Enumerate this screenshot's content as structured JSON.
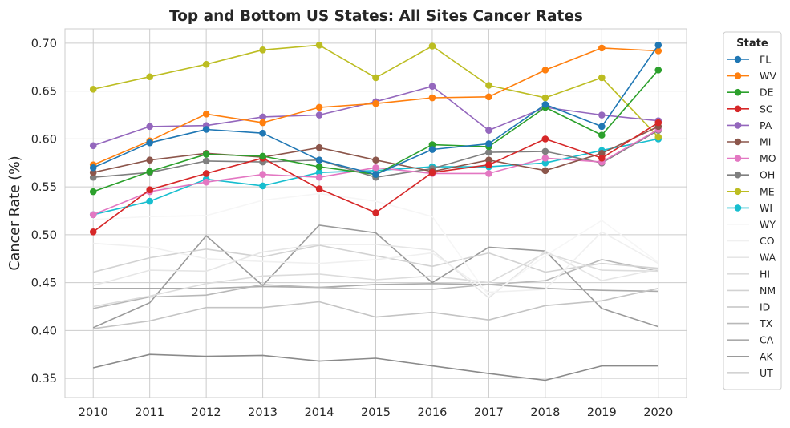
{
  "chart_data": {
    "type": "line",
    "title": "Top and Bottom US States: All Sites Cancer Rates",
    "xlabel": "",
    "ylabel": "Cancer Rate (%)",
    "x": [
      2010,
      2011,
      2012,
      2013,
      2014,
      2015,
      2016,
      2017,
      2018,
      2019,
      2020
    ],
    "ylim": [
      0.33,
      0.715
    ],
    "yticks": [
      0.35,
      0.4,
      0.45,
      0.5,
      0.55,
      0.6,
      0.65,
      0.7
    ],
    "ytick_labels": [
      "0.35",
      "0.40",
      "0.45",
      "0.50",
      "0.55",
      "0.60",
      "0.65",
      "0.70"
    ],
    "grid": true,
    "legend": {
      "title": "State",
      "position": "outside-right"
    },
    "series": [
      {
        "name": "FL",
        "color": "#1f77b4",
        "marker": true,
        "values": [
          0.57,
          0.596,
          0.61,
          0.606,
          0.578,
          0.563,
          0.589,
          0.595,
          0.636,
          0.613,
          0.698
        ]
      },
      {
        "name": "WV",
        "color": "#ff7f0e",
        "marker": true,
        "values": [
          0.573,
          0.598,
          0.626,
          0.617,
          0.633,
          0.637,
          0.643,
          0.644,
          0.672,
          0.695,
          0.692
        ]
      },
      {
        "name": "DE",
        "color": "#2ca02c",
        "marker": true,
        "values": [
          0.545,
          0.566,
          0.584,
          0.582,
          0.571,
          0.563,
          0.594,
          0.592,
          0.633,
          0.604,
          0.672
        ]
      },
      {
        "name": "SC",
        "color": "#d62728",
        "marker": true,
        "values": [
          0.503,
          0.547,
          0.564,
          0.58,
          0.548,
          0.523,
          0.565,
          0.573,
          0.6,
          0.58,
          0.617
        ]
      },
      {
        "name": "PA",
        "color": "#9467bd",
        "marker": true,
        "values": [
          0.593,
          0.613,
          0.614,
          0.623,
          0.625,
          0.639,
          0.655,
          0.609,
          0.633,
          0.625,
          0.619
        ]
      },
      {
        "name": "MI",
        "color": "#8c564b",
        "marker": true,
        "values": [
          0.565,
          0.578,
          0.585,
          0.581,
          0.591,
          0.578,
          0.566,
          0.578,
          0.567,
          0.585,
          0.613
        ]
      },
      {
        "name": "MO",
        "color": "#e377c2",
        "marker": true,
        "values": [
          0.521,
          0.545,
          0.555,
          0.563,
          0.56,
          0.57,
          0.564,
          0.564,
          0.58,
          0.576,
          0.61
        ]
      },
      {
        "name": "OH",
        "color": "#7f7f7f",
        "marker": true,
        "values": [
          0.56,
          0.565,
          0.577,
          0.576,
          0.578,
          0.56,
          0.569,
          0.586,
          0.587,
          0.575,
          0.609
        ]
      },
      {
        "name": "ME",
        "color": "#bcbd22",
        "marker": true,
        "values": [
          0.652,
          0.665,
          0.678,
          0.693,
          0.698,
          0.664,
          0.697,
          0.656,
          0.643,
          0.664,
          0.602
        ]
      },
      {
        "name": "WI",
        "color": "#17becf",
        "marker": true,
        "values": [
          0.521,
          0.535,
          0.558,
          0.551,
          0.565,
          0.567,
          0.571,
          0.571,
          0.575,
          0.588,
          0.6
        ]
      },
      {
        "name": "WY",
        "color": "#f6f6f6",
        "marker": false,
        "values": [
          0.516,
          0.519,
          0.52,
          0.536,
          0.543,
          0.535,
          0.519,
          0.436,
          0.478,
          0.515,
          0.471
        ]
      },
      {
        "name": "CO",
        "color": "#f0f0f0",
        "marker": false,
        "values": [
          0.491,
          0.487,
          0.475,
          0.472,
          0.47,
          0.474,
          0.481,
          0.44,
          0.443,
          0.503,
          0.47
        ]
      },
      {
        "name": "WA",
        "color": "#e6e6e6",
        "marker": false,
        "values": [
          0.447,
          0.463,
          0.462,
          0.482,
          0.49,
          0.49,
          0.484,
          0.434,
          0.483,
          0.452,
          0.464
        ]
      },
      {
        "name": "HI",
        "color": "#dcdcdc",
        "marker": false,
        "values": [
          0.425,
          0.436,
          0.449,
          0.457,
          0.459,
          0.453,
          0.457,
          0.45,
          0.481,
          0.463,
          0.462
        ]
      },
      {
        "name": "NM",
        "color": "#d2d2d2",
        "marker": false,
        "values": [
          0.461,
          0.476,
          0.485,
          0.477,
          0.489,
          0.478,
          0.467,
          0.481,
          0.461,
          0.47,
          0.465
        ]
      },
      {
        "name": "ID",
        "color": "#c4c4c4",
        "marker": false,
        "values": [
          0.402,
          0.41,
          0.424,
          0.424,
          0.43,
          0.414,
          0.419,
          0.411,
          0.426,
          0.431,
          0.444
        ]
      },
      {
        "name": "TX",
        "color": "#b8b8b8",
        "marker": false,
        "values": [
          0.423,
          0.435,
          0.437,
          0.448,
          0.445,
          0.443,
          0.443,
          0.448,
          0.452,
          0.474,
          0.462
        ]
      },
      {
        "name": "CA",
        "color": "#aaaaaa",
        "marker": false,
        "values": [
          0.444,
          0.444,
          0.444,
          0.446,
          0.445,
          0.448,
          0.449,
          0.448,
          0.444,
          0.442,
          0.441
        ]
      },
      {
        "name": "AK",
        "color": "#9a9a9a",
        "marker": false,
        "values": [
          0.403,
          0.429,
          0.499,
          0.447,
          0.51,
          0.502,
          0.45,
          0.487,
          0.483,
          0.423,
          0.404
        ]
      },
      {
        "name": "UT",
        "color": "#8a8a8a",
        "marker": false,
        "values": [
          0.361,
          0.375,
          0.373,
          0.374,
          0.368,
          0.371,
          0.363,
          0.355,
          0.348,
          0.363,
          0.363
        ]
      }
    ]
  }
}
